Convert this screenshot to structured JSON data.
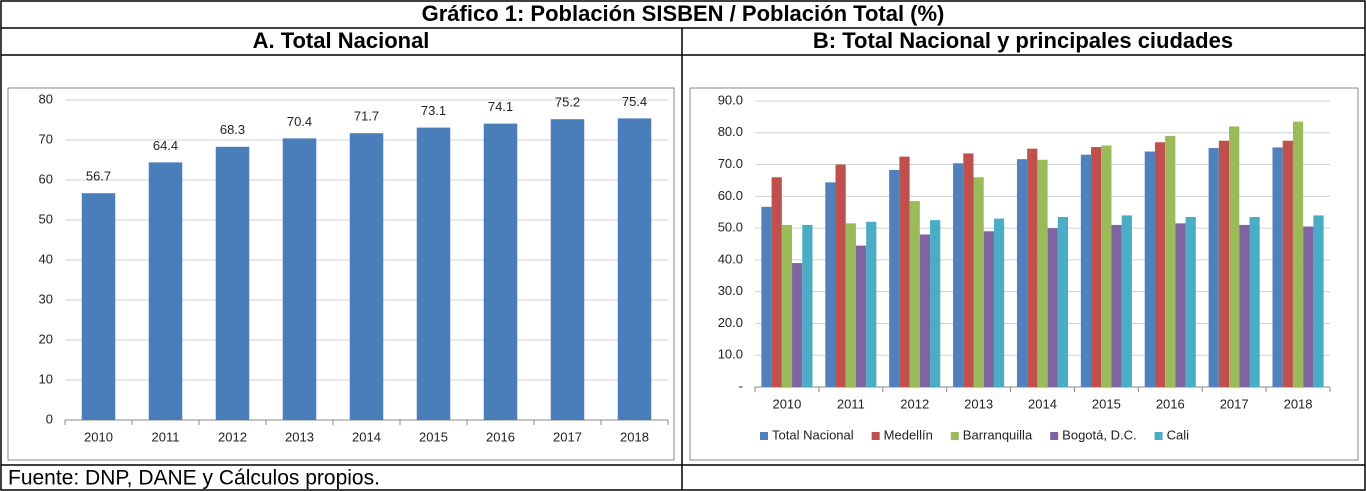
{
  "title": "Gráfico 1: Población SISBEN / Población Total (%)",
  "source": "Fuente: DNP, DANE y Cálculos propios.",
  "chart_data": [
    {
      "type": "bar",
      "title": "A. Total Nacional",
      "categories": [
        "2010",
        "2011",
        "2012",
        "2013",
        "2014",
        "2015",
        "2016",
        "2017",
        "2018"
      ],
      "values": [
        56.7,
        64.4,
        68.3,
        70.4,
        71.7,
        73.1,
        74.1,
        75.2,
        75.4
      ],
      "color": "#4a7ebb",
      "ylim": [
        0,
        80
      ],
      "yticks": [
        0,
        10,
        20,
        30,
        40,
        50,
        60,
        70,
        80
      ],
      "grid": true
    },
    {
      "type": "bar",
      "title": "B: Total Nacional y principales ciudades",
      "categories": [
        "2010",
        "2011",
        "2012",
        "2013",
        "2014",
        "2015",
        "2016",
        "2017",
        "2018"
      ],
      "series": [
        {
          "name": "Total Nacional",
          "color": "#4f81bd",
          "values": [
            56.7,
            64.4,
            68.3,
            70.4,
            71.7,
            73.1,
            74.1,
            75.2,
            75.4
          ]
        },
        {
          "name": "Medellín",
          "color": "#c0504d",
          "values": [
            66,
            70,
            72.5,
            73.5,
            75,
            75.5,
            77,
            77.5,
            77.5
          ]
        },
        {
          "name": "Barranquilla",
          "color": "#9bbb59",
          "values": [
            51,
            51.5,
            58.5,
            66,
            71.5,
            76,
            79,
            82,
            83.5
          ]
        },
        {
          "name": "Bogotá, D.C.",
          "color": "#8064a2",
          "values": [
            39,
            44.5,
            48,
            49,
            50,
            51,
            51.5,
            51,
            50.5
          ]
        },
        {
          "name": "Cali",
          "color": "#4bacc6",
          "values": [
            51,
            52,
            52.5,
            53,
            53.5,
            54,
            53.5,
            53.5,
            54
          ]
        }
      ],
      "ylim": [
        0,
        90
      ],
      "yticks": [
        {
          "value": 0,
          "label": "-"
        },
        {
          "value": 10,
          "label": "10.0"
        },
        {
          "value": 20,
          "label": "20.0"
        },
        {
          "value": 30,
          "label": "30.0"
        },
        {
          "value": 40,
          "label": "40.0"
        },
        {
          "value": 50,
          "label": "50.0"
        },
        {
          "value": 60,
          "label": "60.0"
        },
        {
          "value": 70,
          "label": "70.0"
        },
        {
          "value": 80,
          "label": "80.0"
        },
        {
          "value": 90,
          "label": "90.0"
        }
      ],
      "grid": true,
      "legend": "bottom"
    }
  ]
}
